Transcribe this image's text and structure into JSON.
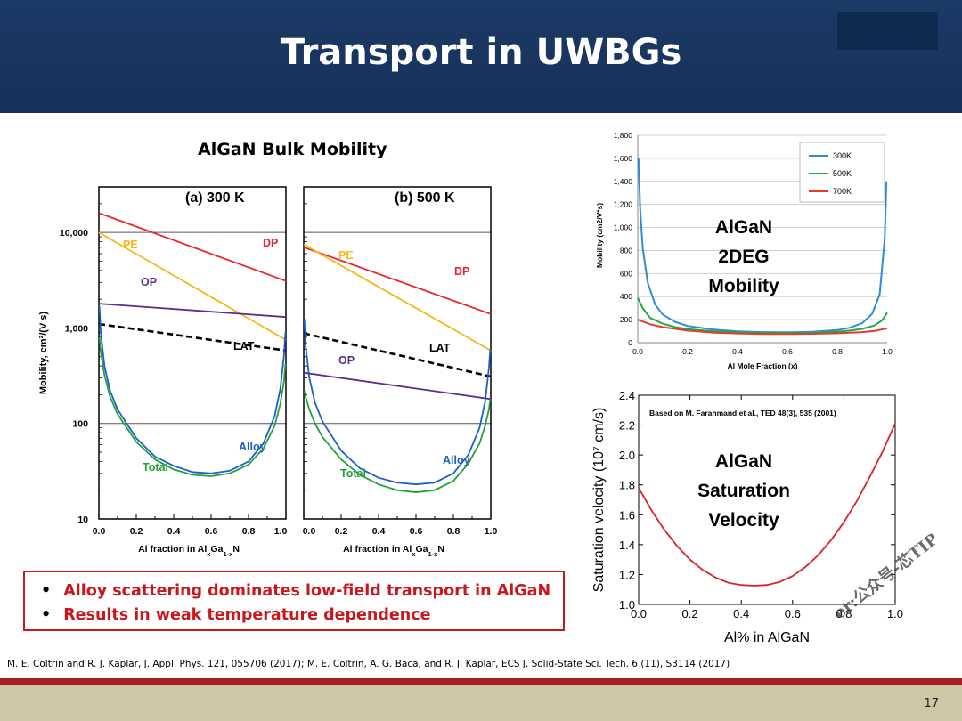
{
  "slide": {
    "title": "Transport in UWBGs",
    "page_number": "17",
    "reference": "M. E. Coltrin and R. J. Kaplar, J. Appl. Phys. 121, 055706 (2017); M. E. Coltrin, A. G. Baca, and R. J. Kaplar, ECS J. Solid-State Sci. Tech. 6 (11), S3114 (2017)",
    "bullets": [
      "Alloy scattering dominates low-field transport in AlGaN",
      "Results in weak temperature dependence"
    ],
    "watermark": "er:公众号-芯TIP"
  },
  "colors": {
    "header": "#1c3a66",
    "accent_red": "#c8181e",
    "footer": "#cfc6a6"
  },
  "chart_data": [
    {
      "type": "line",
      "title": "AlGaN Bulk Mobility",
      "subtitle": "(a) 300 K",
      "xlabel": "Al fraction in AlxGa1-xN",
      "ylabel": "Mobility, cm²/(V s)",
      "yscale": "log",
      "xlim": [
        0,
        1
      ],
      "ylim": [
        10,
        30000
      ],
      "xticks": [
        "0.0",
        "0.2",
        "0.4",
        "0.6",
        "0.8",
        "1.0"
      ],
      "yticks": [
        "10",
        "100",
        "1,000",
        "10,000"
      ],
      "series": [
        {
          "name": "DP",
          "color": "#e8262a",
          "x": [
            0,
            1
          ],
          "y": [
            16000,
            3100
          ]
        },
        {
          "name": "PE",
          "color": "#f5b81a",
          "x": [
            0,
            1
          ],
          "y": [
            10000,
            750
          ]
        },
        {
          "name": "OP",
          "color": "#5b2d91",
          "x": [
            0,
            1
          ],
          "y": [
            1800,
            1300
          ]
        },
        {
          "name": "LAT",
          "color": "#000000",
          "dashed": true,
          "x": [
            0,
            1
          ],
          "y": [
            1100,
            580
          ]
        },
        {
          "name": "Alloy",
          "color": "#1f5fc4",
          "x": [
            0.003,
            0.01,
            0.03,
            0.06,
            0.1,
            0.2,
            0.3,
            0.4,
            0.5,
            0.6,
            0.7,
            0.8,
            0.88,
            0.94,
            0.97,
            0.99,
            0.997
          ],
          "y": [
            1700,
            900,
            400,
            220,
            140,
            70,
            45,
            36,
            31,
            30,
            32,
            40,
            62,
            120,
            230,
            520,
            900
          ]
        },
        {
          "name": "Total",
          "color": "#22a03a",
          "x": [
            0.003,
            0.01,
            0.03,
            0.06,
            0.1,
            0.2,
            0.3,
            0.4,
            0.5,
            0.6,
            0.7,
            0.8,
            0.88,
            0.94,
            0.97,
            0.99,
            0.997
          ],
          "y": [
            800,
            560,
            320,
            190,
            125,
            64,
            42,
            33,
            29,
            28,
            30,
            37,
            55,
            95,
            160,
            280,
            420
          ]
        }
      ]
    },
    {
      "type": "line",
      "subtitle": "(b) 500 K",
      "xlabel": "Al fraction in AlxGa1-xN",
      "yscale": "log",
      "xlim": [
        0,
        1
      ],
      "ylim": [
        10,
        30000
      ],
      "xticks": [
        "0.0",
        "0.2",
        "0.4",
        "0.6",
        "0.8",
        "1.0"
      ],
      "series": [
        {
          "name": "DP",
          "color": "#e8262a",
          "x": [
            0,
            1
          ],
          "y": [
            7000,
            1400
          ]
        },
        {
          "name": "PE",
          "color": "#f5b81a",
          "x": [
            0,
            1
          ],
          "y": [
            7500,
            580
          ]
        },
        {
          "name": "OP",
          "color": "#5b2d91",
          "x": [
            0,
            1
          ],
          "y": [
            340,
            180
          ]
        },
        {
          "name": "LAT",
          "color": "#000000",
          "dashed": true,
          "x": [
            0,
            1
          ],
          "y": [
            880,
            310
          ]
        },
        {
          "name": "Alloy",
          "color": "#1f5fc4",
          "x": [
            0.003,
            0.01,
            0.03,
            0.06,
            0.1,
            0.2,
            0.3,
            0.4,
            0.5,
            0.6,
            0.7,
            0.8,
            0.88,
            0.94,
            0.97,
            0.99,
            0.997
          ],
          "y": [
            1250,
            650,
            300,
            165,
            105,
            52,
            34,
            27,
            24,
            23,
            24,
            30,
            47,
            90,
            170,
            380,
            600
          ]
        },
        {
          "name": "Total",
          "color": "#22a03a",
          "x": [
            0.003,
            0.01,
            0.03,
            0.06,
            0.1,
            0.2,
            0.3,
            0.4,
            0.5,
            0.6,
            0.7,
            0.8,
            0.88,
            0.94,
            0.97,
            0.99,
            0.997
          ],
          "y": [
            220,
            190,
            140,
            100,
            72,
            42,
            29,
            23,
            20,
            19,
            20,
            25,
            38,
            62,
            95,
            140,
            180
          ]
        }
      ]
    },
    {
      "type": "line",
      "annotation": "AlGaN\n2DEG\nMobility",
      "xlabel": "Al Mole Fraction (x)",
      "ylabel": "Mobility (cm2/V*s)",
      "xlim": [
        0,
        1
      ],
      "ylim": [
        0,
        1800
      ],
      "xticks": [
        "0.0",
        "0.2",
        "0.4",
        "0.6",
        "0.8",
        "1.0"
      ],
      "yticks": [
        "0",
        "200",
        "400",
        "600",
        "800",
        "1,000",
        "1,200",
        "1,400",
        "1,600",
        "1,800"
      ],
      "grid": true,
      "legend": "top-right",
      "series": [
        {
          "name": "300K",
          "color": "#2e8bd8",
          "x": [
            0.003,
            0.01,
            0.02,
            0.04,
            0.07,
            0.1,
            0.15,
            0.2,
            0.3,
            0.4,
            0.5,
            0.6,
            0.7,
            0.8,
            0.85,
            0.9,
            0.94,
            0.97,
            0.99,
            0.997
          ],
          "y": [
            1600,
            1150,
            820,
            520,
            330,
            245,
            180,
            145,
            115,
            98,
            92,
            90,
            95,
            110,
            130,
            170,
            250,
            420,
            900,
            1400
          ]
        },
        {
          "name": "500K",
          "color": "#22a84a",
          "x": [
            0,
            0.02,
            0.05,
            0.1,
            0.15,
            0.2,
            0.3,
            0.4,
            0.5,
            0.6,
            0.7,
            0.8,
            0.85,
            0.9,
            0.95,
            0.98,
            1.0
          ],
          "y": [
            390,
            300,
            215,
            165,
            135,
            118,
            100,
            90,
            86,
            85,
            87,
            95,
            105,
            120,
            150,
            195,
            260
          ]
        },
        {
          "name": "700K",
          "color": "#e83a2a",
          "x": [
            0,
            0.05,
            0.1,
            0.2,
            0.3,
            0.4,
            0.5,
            0.6,
            0.7,
            0.8,
            0.9,
            0.95,
            1.0
          ],
          "y": [
            200,
            160,
            135,
            105,
            88,
            80,
            76,
            75,
            77,
            82,
            92,
            102,
            125
          ]
        }
      ]
    },
    {
      "type": "line",
      "annotation": "AlGaN\nSaturation\nVelocity",
      "note": "Based on M. Farahmand et al., TED 48(3), 535 (2001)",
      "xlabel": "Al% in AlGaN",
      "ylabel": "Saturation velocity (10⁷ cm/s)",
      "xlim": [
        0,
        1
      ],
      "ylim": [
        1.0,
        2.4
      ],
      "xticks": [
        "0.0",
        "0.2",
        "0.4",
        "0.6",
        "0.8",
        "1.0"
      ],
      "yticks": [
        "1.0",
        "1.2",
        "1.4",
        "1.6",
        "1.8",
        "2.0",
        "2.2",
        "2.4"
      ],
      "series": [
        {
          "color": "#d8242a",
          "x": [
            0,
            0.05,
            0.1,
            0.15,
            0.2,
            0.25,
            0.3,
            0.35,
            0.4,
            0.45,
            0.5,
            0.55,
            0.6,
            0.65,
            0.7,
            0.75,
            0.8,
            0.85,
            0.9,
            0.95,
            1.0
          ],
          "y": [
            1.78,
            1.63,
            1.5,
            1.39,
            1.3,
            1.23,
            1.18,
            1.145,
            1.13,
            1.125,
            1.13,
            1.15,
            1.19,
            1.25,
            1.33,
            1.43,
            1.55,
            1.69,
            1.85,
            2.02,
            2.21
          ]
        }
      ]
    }
  ]
}
